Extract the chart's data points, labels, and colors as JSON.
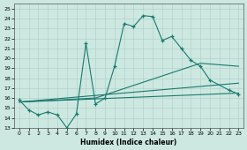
{
  "xlabel": "Humidex (Indice chaleur)",
  "xlim": [
    -0.5,
    23.5
  ],
  "ylim": [
    13,
    25.5
  ],
  "yticks": [
    13,
    14,
    15,
    16,
    17,
    18,
    19,
    20,
    21,
    22,
    23,
    24,
    25
  ],
  "xticks": [
    0,
    1,
    2,
    3,
    4,
    5,
    6,
    7,
    8,
    9,
    10,
    11,
    12,
    13,
    14,
    15,
    16,
    17,
    18,
    19,
    20,
    21,
    22,
    23
  ],
  "background_color": "#cce8e0",
  "line_color": "#1a7a6e",
  "main_line_x": [
    0,
    1,
    2,
    3,
    4,
    5,
    6,
    7,
    8,
    9,
    10,
    11,
    12,
    13,
    14,
    15,
    16,
    17,
    18,
    19,
    20,
    22,
    23
  ],
  "main_line_y": [
    15.8,
    14.8,
    14.3,
    14.6,
    14.3,
    13.0,
    14.4,
    21.5,
    15.4,
    16.0,
    19.2,
    23.5,
    23.2,
    24.3,
    24.2,
    21.8,
    22.2,
    21.0,
    19.8,
    19.2,
    17.8,
    16.8,
    16.4
  ],
  "trend_lines": [
    {
      "x": [
        0,
        23
      ],
      "y": [
        15.6,
        16.5
      ]
    },
    {
      "x": [
        0,
        23
      ],
      "y": [
        15.6,
        17.5
      ]
    },
    {
      "x": [
        0,
        8,
        19,
        23
      ],
      "y": [
        15.6,
        16.0,
        19.5,
        19.2
      ]
    }
  ]
}
